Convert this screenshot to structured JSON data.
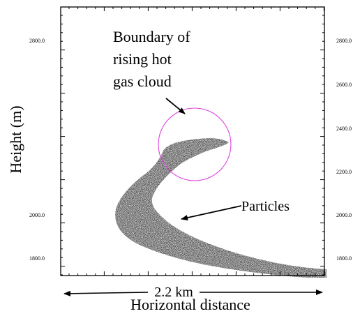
{
  "axes": {
    "y_ticks_left": [
      "2800.0",
      "2000.0",
      "1800.0"
    ],
    "y_ticks_right": [
      "2800.0",
      "2600.0",
      "2400.0",
      "2200.0",
      "2000.0",
      "1800.0"
    ],
    "y_label": "Height (m)",
    "x_label": "Horizontal distance"
  },
  "annotations": {
    "boundary_lines": [
      "Boundary of",
      "rising hot",
      "gas cloud"
    ],
    "particles": "Particles",
    "scale": "2.2 km"
  },
  "colors": {
    "cloud_boundary": "#e040e0",
    "particles": "#000000",
    "frame": "#000000"
  }
}
